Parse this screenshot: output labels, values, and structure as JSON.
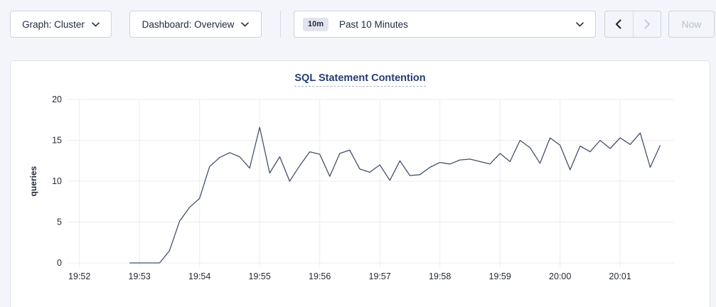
{
  "toolbar": {
    "graph_select": {
      "label": "Graph: Cluster"
    },
    "dashboard_select": {
      "label": "Dashboard: Overview"
    },
    "time_range": {
      "badge": "10m",
      "label": "Past 10 Minutes"
    },
    "now_label": "Now"
  },
  "chart_data": {
    "type": "line",
    "title": "SQL Statement Contention",
    "ylabel": "queries",
    "ylim": [
      0,
      20
    ],
    "y_ticks": [
      0,
      5,
      10,
      15,
      20
    ],
    "x_tick_labels": [
      "19:52",
      "19:53",
      "19:54",
      "19:55",
      "19:56",
      "19:57",
      "19:58",
      "19:59",
      "20:00",
      "20:01"
    ],
    "grid": true,
    "legend": "none",
    "line_color": "#44506b",
    "grid_color": "#ececf0",
    "series": [
      {
        "name": "SQL Statement Contention",
        "start_time": "19:52:50",
        "interval_seconds": 10,
        "values": [
          0,
          0,
          0,
          0,
          1.5,
          5.1,
          6.8,
          7.9,
          11.8,
          12.9,
          13.5,
          13,
          11.6,
          16.6,
          11,
          13,
          10,
          11.9,
          13.6,
          13.3,
          10.6,
          13.4,
          13.8,
          11.5,
          11.1,
          12,
          10.1,
          12.5,
          10.7,
          10.8,
          11.7,
          12.3,
          12.1,
          12.6,
          12.7,
          12.4,
          12.1,
          13.4,
          12.4,
          15,
          14.1,
          12.2,
          15.3,
          14.4,
          11.4,
          14.3,
          13.6,
          15,
          14,
          15.3,
          14.5,
          15.9,
          11.7,
          14.4
        ]
      }
    ]
  }
}
